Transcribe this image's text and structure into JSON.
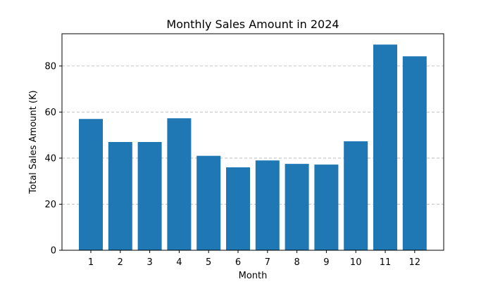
{
  "chart_data": {
    "type": "bar",
    "title": "Monthly Sales Amount in 2024",
    "xlabel": "Month",
    "ylabel": "Total Sales Amount (K)",
    "categories": [
      "1",
      "2",
      "3",
      "4",
      "5",
      "6",
      "7",
      "8",
      "9",
      "10",
      "11",
      "12"
    ],
    "values": [
      57.0,
      47.0,
      47.0,
      57.3,
      41.0,
      36.0,
      39.0,
      37.5,
      37.2,
      47.3,
      89.3,
      84.2
    ],
    "ylim": [
      0,
      94
    ],
    "yticks": [
      0,
      20,
      40,
      60,
      80
    ],
    "grid": "y-dashed",
    "bar_color": "#1f77b4"
  }
}
